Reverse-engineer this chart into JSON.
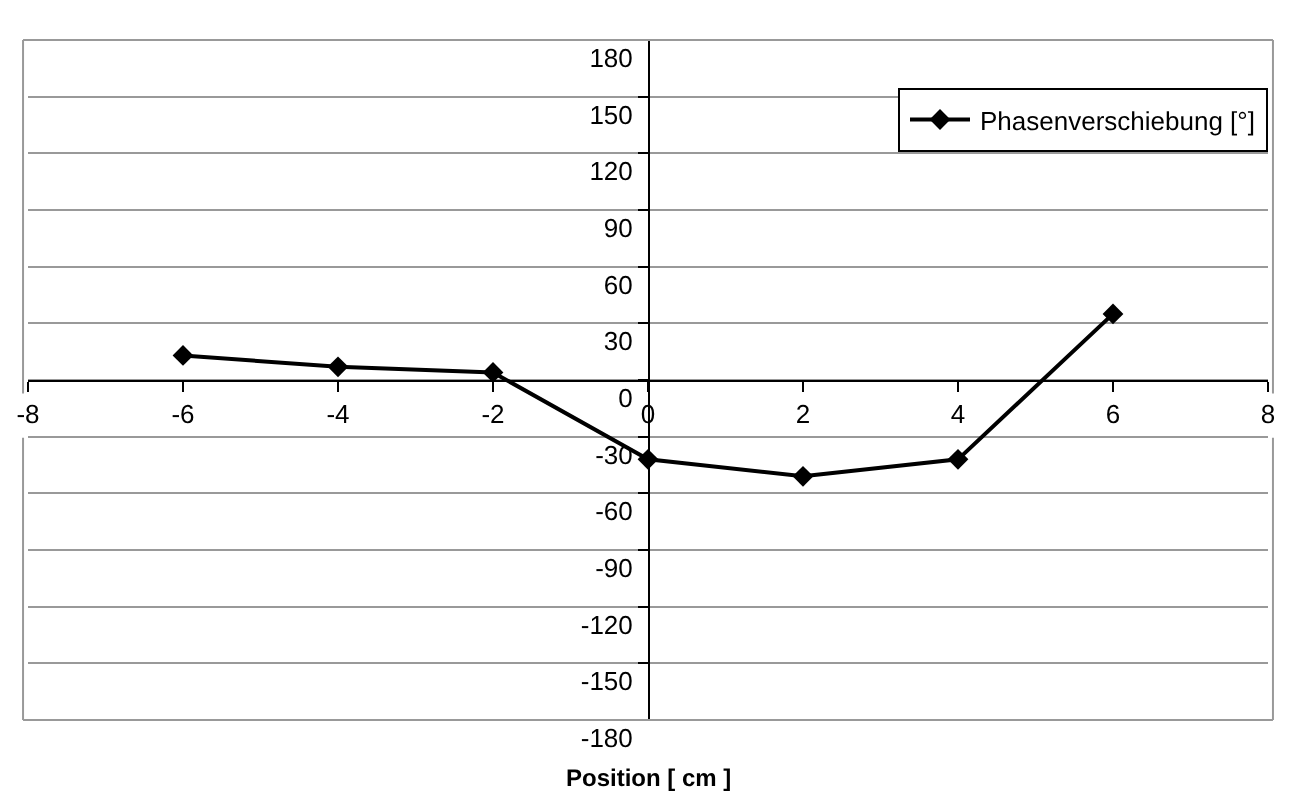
{
  "chart_data": {
    "type": "line",
    "xlabel": "Position [ cm ]",
    "x": [
      -6,
      -4,
      -2,
      0,
      2,
      4,
      6
    ],
    "series": [
      {
        "name": "Phasenverschiebung [°]",
        "color": "#000000",
        "values": [
          13,
          7,
          4,
          -42,
          -51,
          -42,
          35
        ]
      }
    ],
    "xlim": [
      -8,
      8
    ],
    "xticks": [
      -8,
      -6,
      -4,
      -2,
      0,
      2,
      4,
      6,
      8
    ],
    "ylim": [
      -180,
      180
    ],
    "yticks": [
      -180,
      -150,
      -120,
      -90,
      -60,
      -30,
      0,
      30,
      60,
      90,
      120,
      150,
      180
    ],
    "grid": "y",
    "legend": "top right",
    "marker": "diamond",
    "line_style": "solid"
  }
}
